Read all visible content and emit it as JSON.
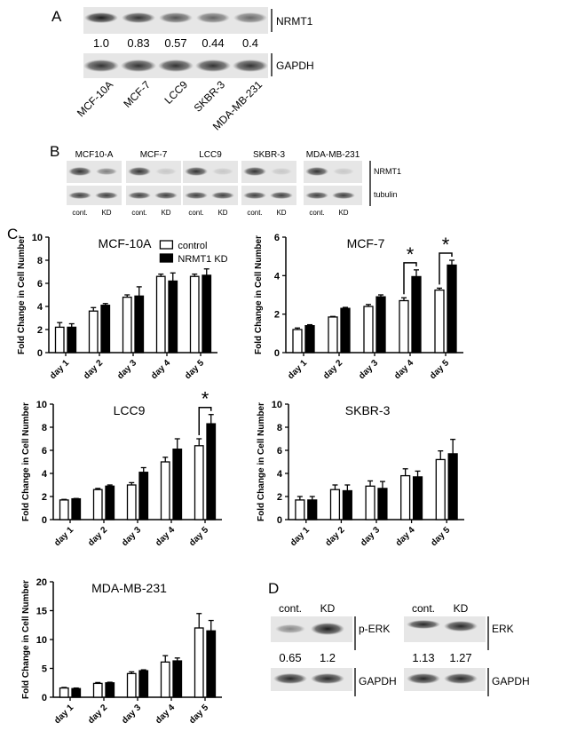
{
  "panel_labels": {
    "a": "A",
    "b": "B",
    "c": "C",
    "d": "D"
  },
  "panel_a": {
    "target_label": "NRMT1",
    "loading_label": "GAPDH",
    "lanes": [
      "MCF-10A",
      "MCF-7",
      "LCC9",
      "SKBR-3",
      "MDA-MB-231"
    ],
    "quantification": [
      "1.0",
      "0.83",
      "0.57",
      "0.44",
      "0.4"
    ],
    "band_intensity": [
      1.0,
      0.83,
      0.57,
      0.44,
      0.4
    ]
  },
  "panel_b": {
    "cell_lines": [
      "MCF10-A",
      "MCF-7",
      "LCC9",
      "SKBR-3",
      "MDA-MB-231"
    ],
    "lane_labels": [
      "cont.",
      "KD"
    ],
    "target_label": "NRMT1",
    "loading_label": "tubulin"
  },
  "panel_d": {
    "lane_labels": [
      "cont.",
      "KD"
    ],
    "blots": [
      {
        "target_label": "p-ERK",
        "loading_label": "GAPDH",
        "quantification": [
          "0.65",
          "1.2"
        ]
      },
      {
        "target_label": "ERK",
        "loading_label": "GAPDH",
        "quantification": [
          "1.13",
          "1.27"
        ]
      }
    ]
  },
  "colors": {
    "control": "#ffffff",
    "knockdown": "#000000",
    "axis": "#000000"
  },
  "chart_data": [
    {
      "type": "bar",
      "title": "MCF-10A",
      "ylabel": "Fold Change in Cell Number",
      "ylim": [
        0,
        10
      ],
      "yticks": [
        0,
        2,
        4,
        6,
        8,
        10
      ],
      "categories": [
        "day 1",
        "day 2",
        "day 3",
        "day 4",
        "day 5"
      ],
      "legend": {
        "placement": "top-right",
        "entries": [
          "control",
          "NRMT1 KD"
        ]
      },
      "series": [
        {
          "name": "control",
          "values": [
            2.2,
            3.6,
            4.8,
            6.6,
            6.6
          ],
          "errors": [
            0.4,
            0.3,
            0.2,
            0.2,
            0.2
          ]
        },
        {
          "name": "NRMT1 KD",
          "values": [
            2.2,
            4.1,
            4.9,
            6.2,
            6.7
          ],
          "errors": [
            0.3,
            0.15,
            0.8,
            0.7,
            0.55
          ]
        }
      ],
      "significance": []
    },
    {
      "type": "bar",
      "title": "MCF-7",
      "ylabel": "Fold Change in Cell Number",
      "ylim": [
        0,
        6
      ],
      "yticks": [
        0,
        2,
        4,
        6
      ],
      "categories": [
        "day 1",
        "day 2",
        "day 3",
        "day 4",
        "day 5"
      ],
      "series": [
        {
          "name": "control",
          "values": [
            1.2,
            1.85,
            2.4,
            2.7,
            3.25
          ],
          "errors": [
            0.08,
            0.03,
            0.1,
            0.15,
            0.1
          ]
        },
        {
          "name": "NRMT1 KD",
          "values": [
            1.4,
            2.3,
            2.9,
            3.95,
            4.55
          ],
          "errors": [
            0.05,
            0.05,
            0.1,
            0.35,
            0.25
          ]
        }
      ],
      "significance": [
        {
          "category": "day 4",
          "label": "*"
        },
        {
          "category": "day 5",
          "label": "*"
        }
      ]
    },
    {
      "type": "bar",
      "title": "LCC9",
      "ylabel": "Fold Change in Cell Number",
      "ylim": [
        0,
        10
      ],
      "yticks": [
        0,
        2,
        4,
        6,
        8,
        10
      ],
      "categories": [
        "day 1",
        "day 2",
        "day 3",
        "day 4",
        "day 5"
      ],
      "series": [
        {
          "name": "control",
          "values": [
            1.7,
            2.6,
            3.0,
            5.0,
            6.4
          ],
          "errors": [
            0.05,
            0.1,
            0.2,
            0.4,
            0.6
          ]
        },
        {
          "name": "NRMT1 KD",
          "values": [
            1.8,
            2.9,
            4.1,
            6.1,
            8.3
          ],
          "errors": [
            0.03,
            0.1,
            0.4,
            0.9,
            0.8
          ]
        }
      ],
      "significance": [
        {
          "category": "day 5",
          "label": "*"
        }
      ]
    },
    {
      "type": "bar",
      "title": "SKBR-3",
      "ylabel": "Fold Change in Cell Number",
      "ylim": [
        0,
        10
      ],
      "yticks": [
        0,
        2,
        4,
        6,
        8,
        10
      ],
      "categories": [
        "day 1",
        "day 2",
        "day 3",
        "day 4",
        "day 5"
      ],
      "series": [
        {
          "name": "control",
          "values": [
            1.7,
            2.6,
            2.9,
            3.8,
            5.2
          ],
          "errors": [
            0.3,
            0.4,
            0.45,
            0.6,
            0.75
          ]
        },
        {
          "name": "NRMT1 KD",
          "values": [
            1.7,
            2.5,
            2.7,
            3.7,
            5.7
          ],
          "errors": [
            0.3,
            0.5,
            0.6,
            0.5,
            1.25
          ]
        }
      ],
      "significance": []
    },
    {
      "type": "bar",
      "title": "MDA-MB-231",
      "ylabel": "Fold Change in Cell Number",
      "ylim": [
        0,
        20
      ],
      "yticks": [
        0,
        5,
        10,
        15,
        20
      ],
      "categories": [
        "day 1",
        "day 2",
        "day 3",
        "day 4",
        "day 5"
      ],
      "series": [
        {
          "name": "control",
          "values": [
            1.6,
            2.4,
            4.1,
            6.1,
            12.0
          ],
          "errors": [
            0.1,
            0.15,
            0.3,
            1.1,
            2.5
          ]
        },
        {
          "name": "NRMT1 KD",
          "values": [
            1.5,
            2.5,
            4.6,
            6.3,
            11.5
          ],
          "errors": [
            0.1,
            0.1,
            0.15,
            0.5,
            1.8
          ]
        }
      ],
      "significance": []
    }
  ]
}
